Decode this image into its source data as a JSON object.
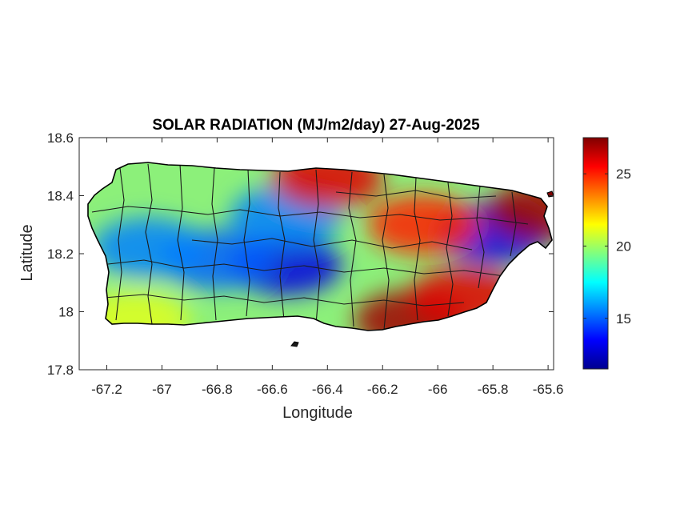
{
  "chart_data": {
    "type": "heatmap",
    "title": "SOLAR RADIATION (MJ/m2/day) 27-Aug-2025",
    "xlabel": "Longitude",
    "ylabel": "Latitude",
    "xlim": [
      -67.3,
      -65.58
    ],
    "ylim": [
      17.8,
      18.6
    ],
    "x_ticks": [
      -67.2,
      -67,
      -66.8,
      -66.6,
      -66.4,
      -66.2,
      -66,
      -65.8,
      -65.6
    ],
    "x_tick_labels": [
      "-67.2",
      "-67",
      "-66.8",
      "-66.6",
      "-66.4",
      "-66.2",
      "-66",
      "-65.8",
      "-65.6"
    ],
    "y_ticks": [
      17.8,
      18,
      18.2,
      18.4,
      18.6
    ],
    "y_tick_labels": [
      "17.8",
      "18",
      "18.2",
      "18.4",
      "18.6"
    ],
    "colorbar": {
      "colormap": "jet",
      "range": [
        11.5,
        27.5
      ],
      "ticks": [
        15,
        20,
        25
      ],
      "tick_labels": [
        "15",
        "20",
        "25"
      ],
      "placement": "right"
    },
    "grid": false,
    "approx_field_centers": [
      {
        "lon": -66.55,
        "lat": 18.16,
        "value": 13
      },
      {
        "lon": -66.8,
        "lat": 18.18,
        "value": 15
      },
      {
        "lon": -67.05,
        "lat": 18.22,
        "value": 15.5
      },
      {
        "lon": -66.55,
        "lat": 18.33,
        "value": 15.5
      },
      {
        "lon": -65.8,
        "lat": 18.27,
        "value": 13
      },
      {
        "lon": -66.4,
        "lat": 18.46,
        "value": 26
      },
      {
        "lon": -66.1,
        "lat": 17.97,
        "value": 27
      },
      {
        "lon": -65.9,
        "lat": 18.05,
        "value": 26
      },
      {
        "lon": -65.62,
        "lat": 18.35,
        "value": 27
      },
      {
        "lon": -67.1,
        "lat": 17.97,
        "value": 21
      },
      {
        "lon": -66.05,
        "lat": 18.3,
        "value": 25
      }
    ]
  }
}
